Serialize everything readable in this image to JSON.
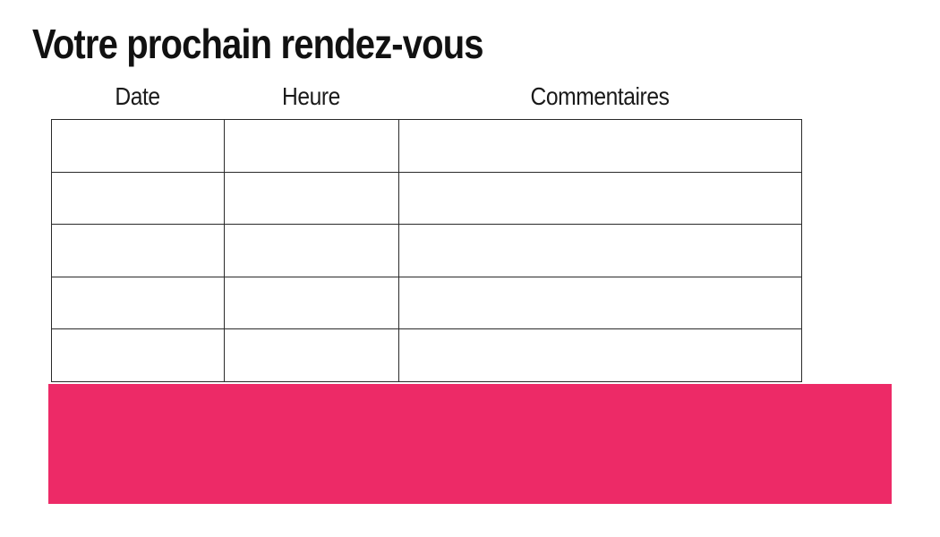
{
  "page": {
    "title": "Votre prochain rendez-vous",
    "background_color": "#FFFFFF"
  },
  "appointments_table": {
    "columns": [
      {
        "label": "Date"
      },
      {
        "label": "Heure"
      },
      {
        "label": "Commentaires"
      }
    ],
    "rows": [
      {
        "date": "",
        "heure": "",
        "commentaires": ""
      },
      {
        "date": "",
        "heure": "",
        "commentaires": ""
      },
      {
        "date": "",
        "heure": "",
        "commentaires": ""
      },
      {
        "date": "",
        "heure": "",
        "commentaires": ""
      },
      {
        "date": "",
        "heure": "",
        "commentaires": ""
      }
    ],
    "border_color": "#2A2A2A"
  },
  "banner": {
    "text": "",
    "color": "#ED2A67"
  },
  "colors": {
    "title_text": "#111111",
    "header_text": "#1A1A1A"
  }
}
